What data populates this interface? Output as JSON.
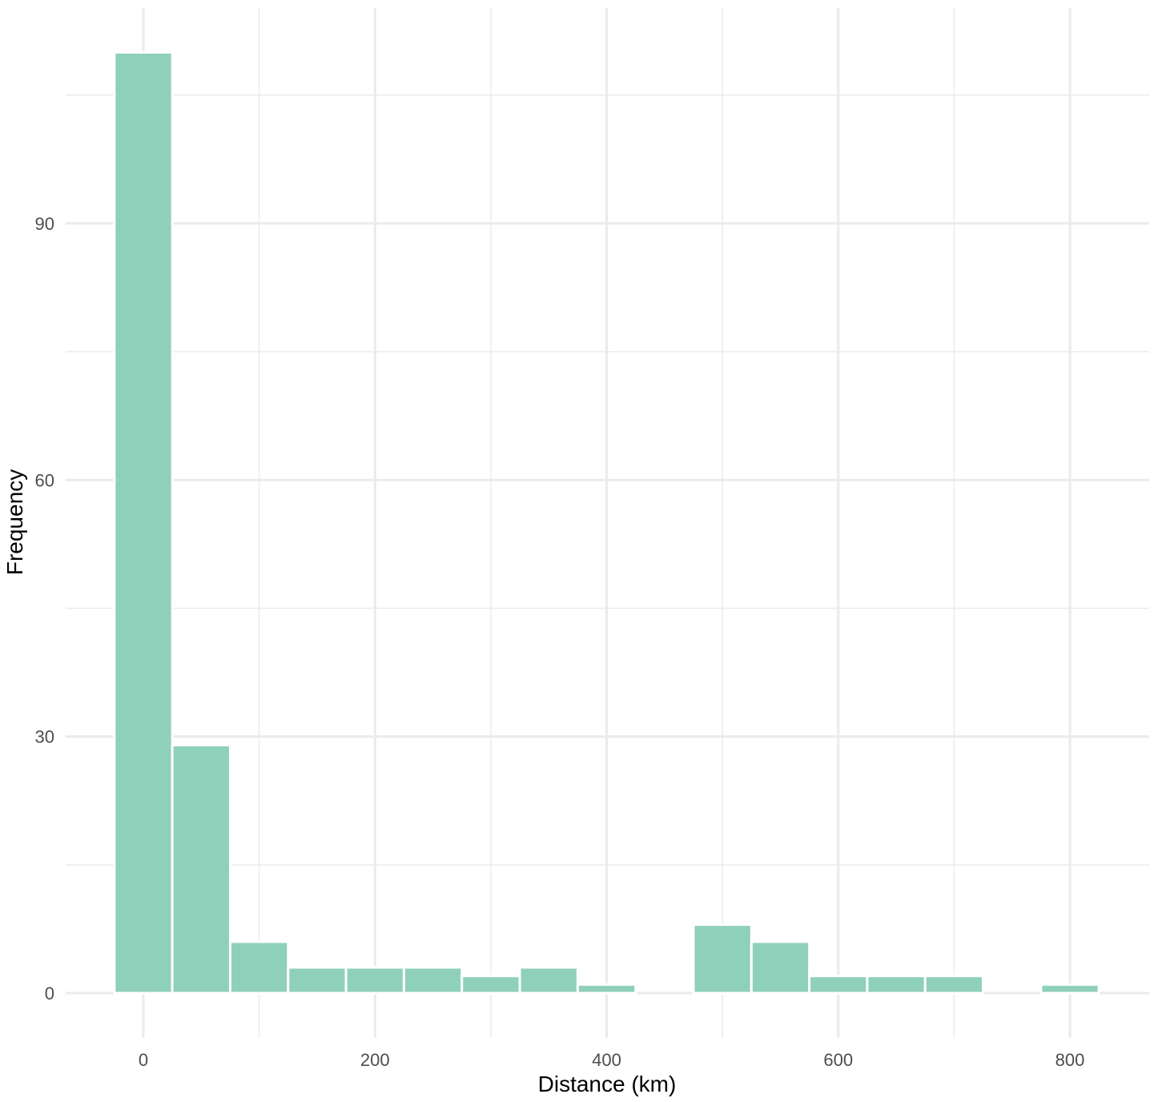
{
  "chart_data": {
    "type": "bar",
    "subtype": "histogram",
    "bins": [
      {
        "x_start": -25,
        "x_end": 25,
        "count": 110
      },
      {
        "x_start": 25,
        "x_end": 75,
        "count": 29
      },
      {
        "x_start": 75,
        "x_end": 125,
        "count": 6
      },
      {
        "x_start": 125,
        "x_end": 175,
        "count": 3
      },
      {
        "x_start": 175,
        "x_end": 225,
        "count": 3
      },
      {
        "x_start": 225,
        "x_end": 275,
        "count": 3
      },
      {
        "x_start": 275,
        "x_end": 325,
        "count": 2
      },
      {
        "x_start": 325,
        "x_end": 375,
        "count": 3
      },
      {
        "x_start": 375,
        "x_end": 425,
        "count": 1
      },
      {
        "x_start": 425,
        "x_end": 475,
        "count": 0
      },
      {
        "x_start": 475,
        "x_end": 525,
        "count": 8
      },
      {
        "x_start": 525,
        "x_end": 575,
        "count": 6
      },
      {
        "x_start": 575,
        "x_end": 625,
        "count": 2
      },
      {
        "x_start": 625,
        "x_end": 675,
        "count": 2
      },
      {
        "x_start": 675,
        "x_end": 725,
        "count": 2
      },
      {
        "x_start": 725,
        "x_end": 775,
        "count": 0
      },
      {
        "x_start": 775,
        "x_end": 825,
        "count": 1
      }
    ],
    "title": "",
    "xlabel": "Distance (km)",
    "ylabel": "Frequency",
    "xlim": [
      -70,
      870
    ],
    "ylim": [
      -5,
      112
    ],
    "x_ticks": [
      0,
      200,
      400,
      600,
      800
    ],
    "x_tick_labels": [
      "0",
      "200",
      "400",
      "600",
      "800"
    ],
    "x_minor_gridlines": [
      100,
      300,
      500,
      700
    ],
    "y_ticks": [
      0,
      30,
      60,
      90
    ],
    "y_tick_labels": [
      "0",
      "30",
      "60",
      "90"
    ],
    "y_minor_gridlines": [
      15,
      45,
      75,
      105
    ],
    "grid": true,
    "legend": "none",
    "bar_fill_color": "#8fd0ba",
    "bar_edge_color": "#ffffff",
    "grid_color": "#ebebeb",
    "background_color": "#ffffff"
  }
}
